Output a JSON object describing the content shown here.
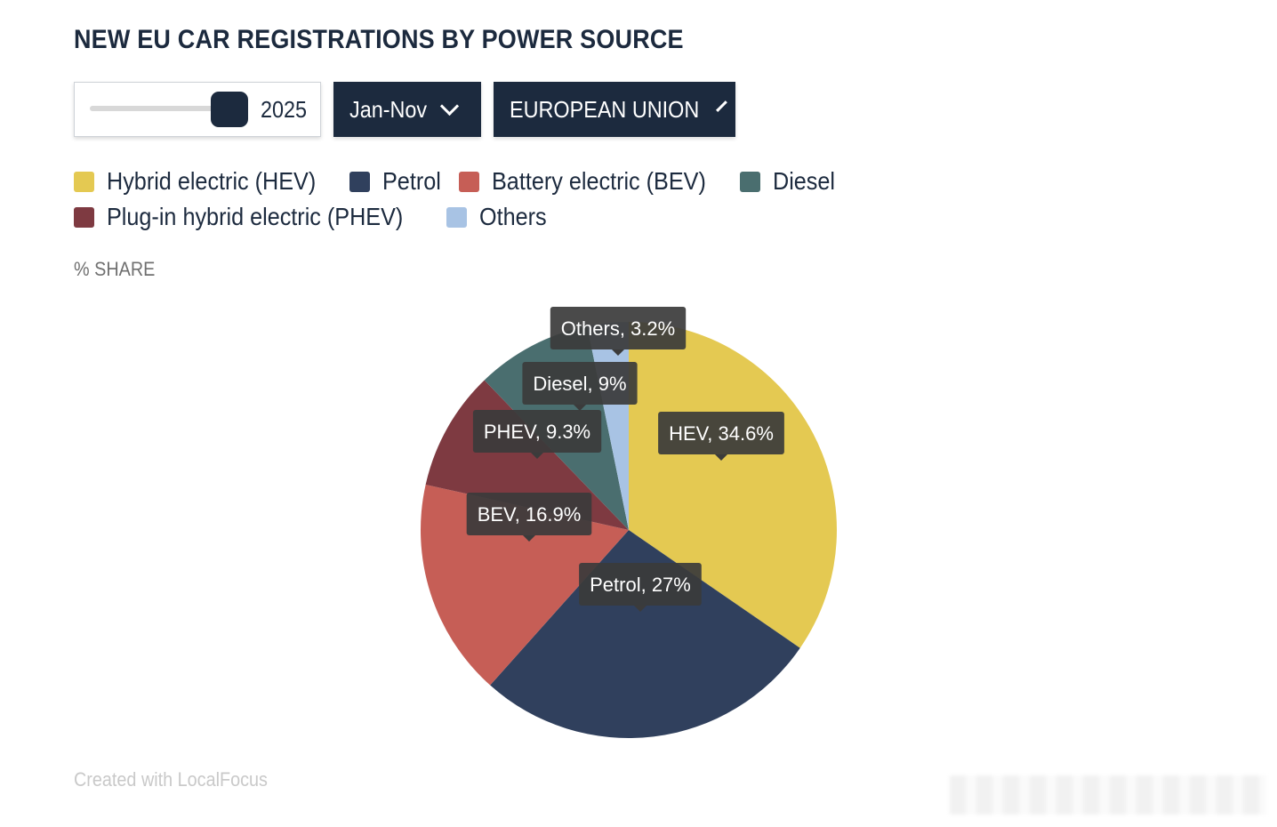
{
  "title": "NEW EU CAR REGISTRATIONS BY POWER SOURCE",
  "controls": {
    "year_value": "2025",
    "period_label": "Jan-Nov",
    "region_label": "EUROPEAN UNION"
  },
  "unit_label": "% SHARE",
  "credit": "Created with LocalFocus",
  "legend": [
    {
      "label": "Hybrid electric (HEV)",
      "color": "#e4c952"
    },
    {
      "label": "Petrol",
      "color": "#30405d"
    },
    {
      "label": "Battery electric (BEV)",
      "color": "#c65e56"
    },
    {
      "label": "Diesel",
      "color": "#4a6e6f"
    },
    {
      "label": "Plug-in hybrid electric (PHEV)",
      "color": "#7e3a41"
    },
    {
      "label": "Others",
      "color": "#a8c3e4"
    }
  ],
  "chart_data": {
    "type": "pie",
    "unit": "%",
    "slices": [
      {
        "name": "HEV",
        "value": 34.6,
        "label": "HEV, 34.6%",
        "color": "#e4c952"
      },
      {
        "name": "Petrol",
        "value": 27,
        "label": "Petrol, 27%",
        "color": "#30405d"
      },
      {
        "name": "BEV",
        "value": 16.9,
        "label": "BEV, 16.9%",
        "color": "#c65e56"
      },
      {
        "name": "PHEV",
        "value": 9.3,
        "label": "PHEV, 9.3%",
        "color": "#7e3a41"
      },
      {
        "name": "Diesel",
        "value": 9,
        "label": "Diesel, 9%",
        "color": "#4a6e6f"
      },
      {
        "name": "Others",
        "value": 3.2,
        "label": "Others, 3.2%",
        "color": "#a8c3e4"
      }
    ]
  }
}
